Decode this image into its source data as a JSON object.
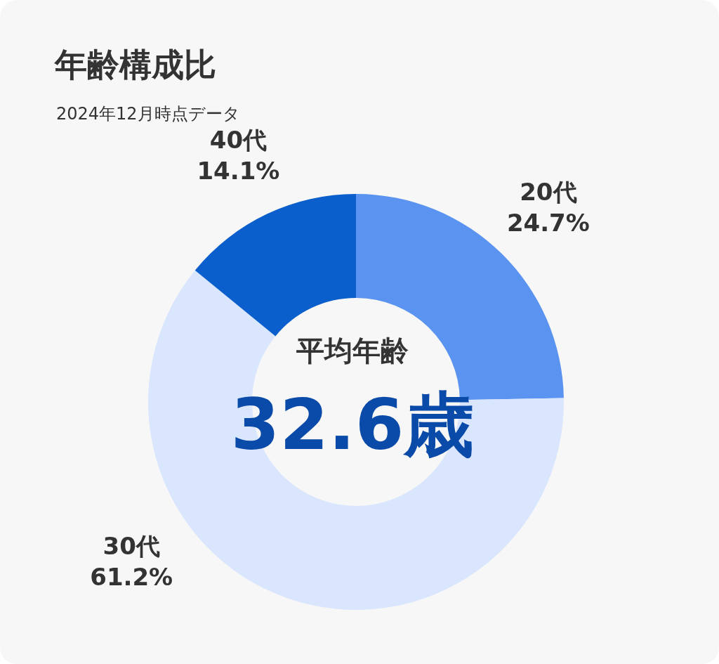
{
  "chart_data": {
    "type": "donut",
    "title": "年齢構成比",
    "subtitle": "2024年12月時点データ",
    "categories": [
      "20代",
      "30代",
      "40代"
    ],
    "values": [
      24.7,
      61.2,
      14.1
    ],
    "colors": [
      "#5a94f0",
      "#d9e6fd",
      "#0a5fcc"
    ],
    "value_labels": [
      "24.7%",
      "61.2%",
      "14.1%"
    ],
    "annotations": [
      "平均年齢",
      "32.6歳"
    ]
  }
}
